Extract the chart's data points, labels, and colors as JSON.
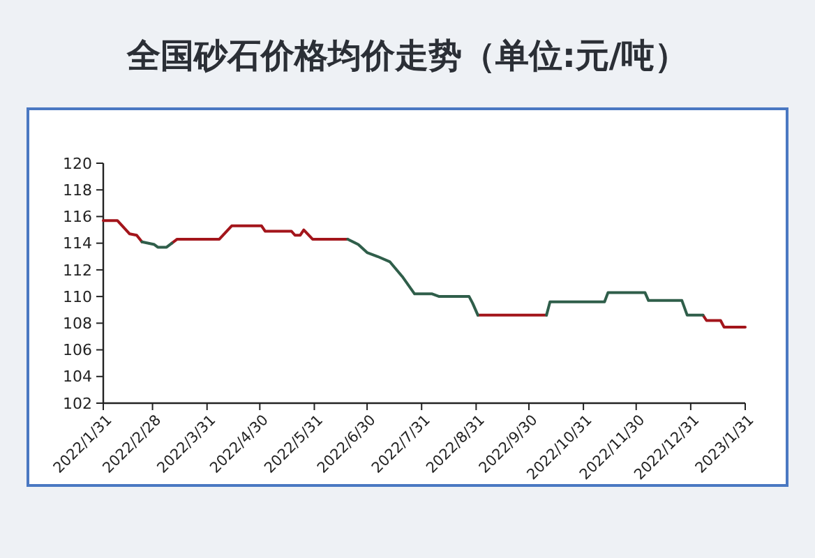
{
  "chart_data": {
    "type": "line",
    "title": "全国砂石价格均价走势（单位:元/吨）",
    "xlim": [
      "2022-01-31",
      "2023-01-31"
    ],
    "xticks": [
      {
        "value": "2022-01-31",
        "label": "2022/1/31"
      },
      {
        "value": "2022-02-28",
        "label": "2022/2/28"
      },
      {
        "value": "2022-03-31",
        "label": "2022/3/31"
      },
      {
        "value": "2022-04-30",
        "label": "2022/4/30"
      },
      {
        "value": "2022-05-31",
        "label": "2022/5/31"
      },
      {
        "value": "2022-06-30",
        "label": "2022/6/30"
      },
      {
        "value": "2022-07-31",
        "label": "2022/7/31"
      },
      {
        "value": "2022-08-31",
        "label": "2022/8/31"
      },
      {
        "value": "2022-09-30",
        "label": "2022/9/30"
      },
      {
        "value": "2022-10-31",
        "label": "2022/10/31"
      },
      {
        "value": "2022-11-30",
        "label": "2022/11/30"
      },
      {
        "value": "2022-12-31",
        "label": "2022/12/31"
      },
      {
        "value": "2023-01-31",
        "label": "2023/1/31"
      }
    ],
    "ylim": [
      102,
      120
    ],
    "yticks": [
      102,
      104,
      106,
      108,
      110,
      112,
      114,
      116,
      118,
      120
    ],
    "marker": "none",
    "line_style": "solid",
    "series": [
      {
        "color": "#a3151b",
        "x": [
          "2022-01-31",
          "2022-02-08",
          "2022-02-15",
          "2022-02-19",
          "2022-02-22",
          "2022-03-01",
          "2022-03-11",
          "2022-03-14",
          "2022-04-07",
          "2022-04-14",
          "2022-05-01",
          "2022-05-03",
          "2022-05-18",
          "2022-05-20",
          "2022-05-23",
          "2022-05-25",
          "2022-05-30",
          "2022-06-19",
          "2022-07-01",
          "2022-09-01",
          "2022-10-10",
          "2022-11-01",
          "2023-01-07",
          "2023-01-09",
          "2023-01-17",
          "2023-01-19",
          "2023-01-31"
        ],
        "values": [
          115.7,
          115.7,
          114.7,
          114.6,
          114.1,
          null,
          114.0,
          114.3,
          114.3,
          115.3,
          115.3,
          114.9,
          114.9,
          114.6,
          114.6,
          115.0,
          114.3,
          114.3,
          null,
          108.6,
          108.6,
          null,
          108.6,
          108.2,
          108.2,
          107.7,
          107.7
        ]
      },
      {
        "color": "#2f5e4a",
        "x": [
          "2022-02-22",
          "2022-03-01",
          "2022-03-03",
          "2022-03-08",
          "2022-03-11",
          "2022-04-01",
          "2022-06-19",
          "2022-06-25",
          "2022-06-30",
          "2022-07-06",
          "2022-07-13",
          "2022-07-20",
          "2022-07-27",
          "2022-08-06",
          "2022-08-10",
          "2022-08-27",
          "2022-08-29",
          "2022-09-01",
          "2022-09-15",
          "2022-10-10",
          "2022-10-12",
          "2022-11-12",
          "2022-11-14",
          "2022-12-05",
          "2022-12-07",
          "2022-12-26",
          "2022-12-29",
          "2023-01-07"
        ],
        "values": [
          114.1,
          113.9,
          113.7,
          113.7,
          114.0,
          null,
          114.3,
          113.9,
          113.3,
          113.0,
          112.6,
          111.5,
          110.2,
          110.2,
          110.0,
          110.0,
          109.5,
          108.6,
          null,
          108.6,
          109.6,
          109.6,
          110.3,
          110.3,
          109.7,
          109.7,
          108.6,
          108.6
        ]
      }
    ]
  }
}
